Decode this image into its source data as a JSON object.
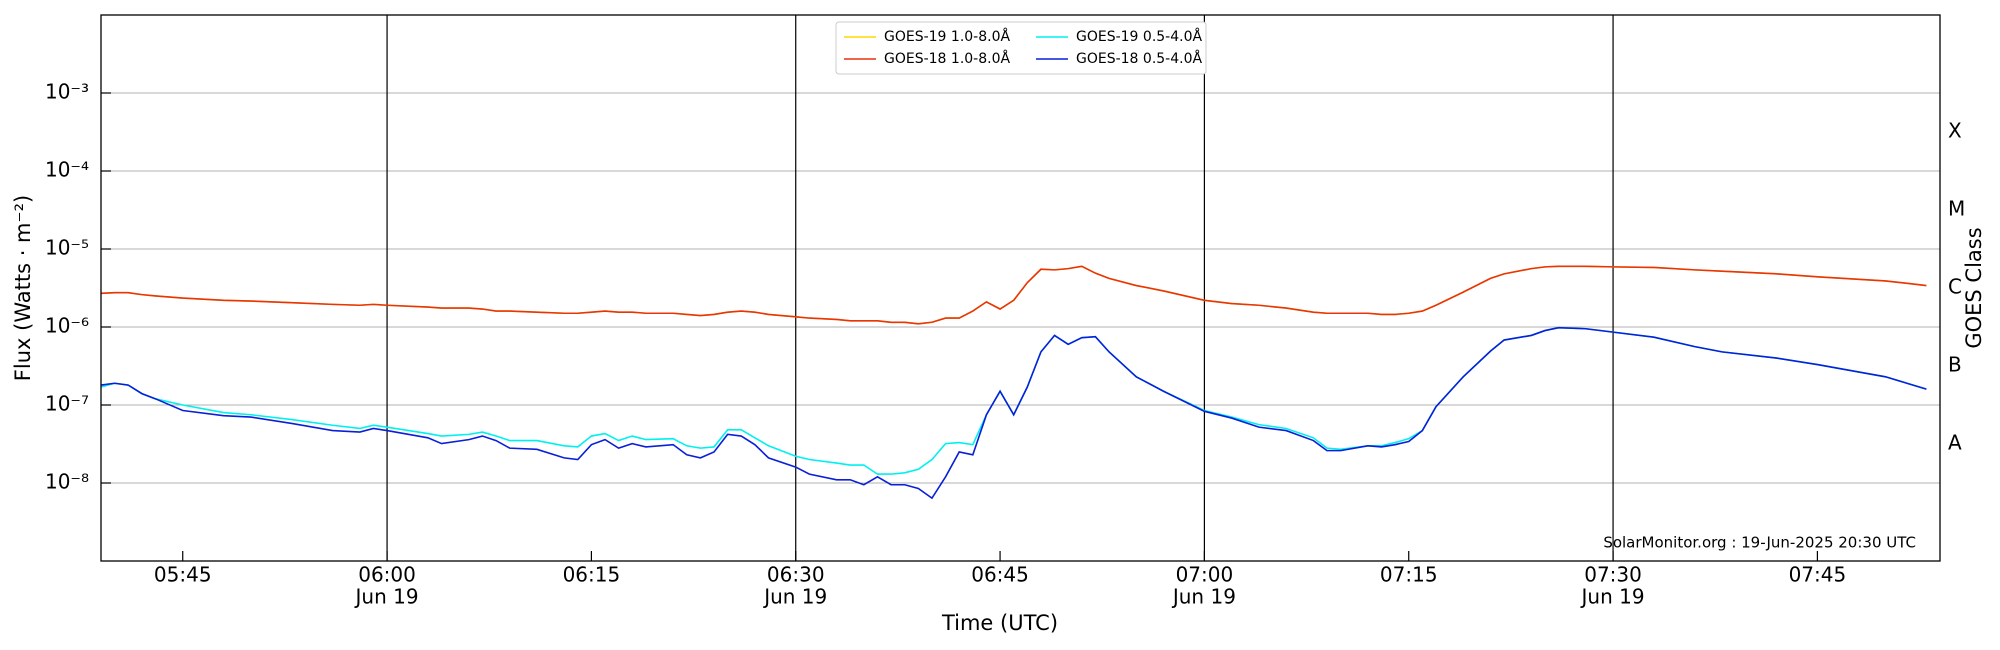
{
  "chart_data": {
    "type": "line",
    "xlabel": "Time (UTC)",
    "ylabel": "Flux (Watts · m⁻²)",
    "y2label": "GOES Class",
    "annotation": "SolarMonitor.org : 19-Jun-2025 20:30 UTC",
    "log_y": true,
    "grid": true,
    "legend": "upper center",
    "xlim": [
      "05:39",
      "07:54"
    ],
    "ylim": [
      1e-09,
      0.01
    ],
    "y2lim": [
      1e-09,
      0.01
    ],
    "xticks": [
      "05:45",
      {
        "value": "06:00",
        "label": [
          "06:00",
          "Jun 19"
        ]
      },
      "06:15",
      {
        "value": "06:30",
        "label": [
          "06:30",
          "Jun 19"
        ]
      },
      "06:45",
      {
        "value": "07:00",
        "label": [
          "07:00",
          "Jun 19"
        ]
      },
      "07:15",
      {
        "value": "07:30",
        "label": [
          "07:30",
          "Jun 19"
        ]
      },
      "07:45"
    ],
    "vlines": [
      "06:00",
      "06:30",
      "07:00",
      "07:30"
    ],
    "yticks": [
      {
        "value": 1e-08,
        "label": "10⁻⁸"
      },
      {
        "value": 1e-07,
        "label": "10⁻⁷"
      },
      {
        "value": 1e-06,
        "label": "10⁻⁶"
      },
      {
        "value": 1e-05,
        "label": "10⁻⁵"
      },
      {
        "value": 0.0001,
        "label": "10⁻⁴"
      },
      {
        "value": 0.001,
        "label": "10⁻³"
      }
    ],
    "y2ticks": [
      {
        "value": 3.162e-08,
        "label": "A"
      },
      {
        "value": 3.162e-07,
        "label": "B"
      },
      {
        "value": 3.162e-06,
        "label": "C"
      },
      {
        "value": 3.162e-05,
        "label": "M"
      },
      {
        "value": 0.0003162,
        "label": "X"
      }
    ],
    "x": [
      "05:39",
      "05:40",
      "05:41",
      "05:42",
      "05:43",
      "05:45",
      "05:48",
      "05:50",
      "05:53",
      "05:56",
      "05:58",
      "05:59",
      "06:00",
      "06:03",
      "06:04",
      "06:06",
      "06:07",
      "06:08",
      "06:09",
      "06:11",
      "06:13",
      "06:14",
      "06:15",
      "06:16",
      "06:17",
      "06:18",
      "06:19",
      "06:21",
      "06:22",
      "06:23",
      "06:24",
      "06:25",
      "06:26",
      "06:27",
      "06:28",
      "06:30",
      "06:31",
      "06:33",
      "06:34",
      "06:35",
      "06:36",
      "06:37",
      "06:38",
      "06:39",
      "06:40",
      "06:41",
      "06:42",
      "06:43",
      "06:44",
      "06:45",
      "06:46",
      "06:47",
      "06:48",
      "06:49",
      "06:50",
      "06:51",
      "06:52",
      "06:53",
      "06:55",
      "06:57",
      "07:00",
      "07:02",
      "07:04",
      "07:06",
      "07:08",
      "07:09",
      "07:10",
      "07:12",
      "07:13",
      "07:14",
      "07:15",
      "07:16",
      "07:17",
      "07:19",
      "07:21",
      "07:22",
      "07:24",
      "07:25",
      "07:26",
      "07:28",
      "07:30",
      "07:33",
      "07:36",
      "07:38",
      "07:42",
      "07:45",
      "07:50",
      "07:53"
    ],
    "series": [
      {
        "name": "GOES-19 1.0-8.0Å",
        "color": "#ffd700",
        "values": [
          2.7e-06,
          2.75e-06,
          2.75e-06,
          2.6e-06,
          2.5e-06,
          2.35e-06,
          2.2e-06,
          2.15e-06,
          2.05e-06,
          1.95e-06,
          1.9e-06,
          1.95e-06,
          1.9e-06,
          1.8e-06,
          1.75e-06,
          1.75e-06,
          1.7e-06,
          1.6e-06,
          1.6e-06,
          1.55e-06,
          1.5e-06,
          1.5e-06,
          1.55e-06,
          1.6e-06,
          1.55e-06,
          1.55e-06,
          1.5e-06,
          1.5e-06,
          1.45e-06,
          1.4e-06,
          1.45e-06,
          1.55e-06,
          1.6e-06,
          1.55e-06,
          1.45e-06,
          1.35e-06,
          1.3e-06,
          1.25e-06,
          1.2e-06,
          1.2e-06,
          1.2e-06,
          1.15e-06,
          1.15e-06,
          1.1e-06,
          1.15e-06,
          1.3e-06,
          1.3e-06,
          1.6e-06,
          2.1e-06,
          1.7e-06,
          2.2e-06,
          3.7e-06,
          5.5e-06,
          5.4e-06,
          5.6e-06,
          6e-06,
          4.9e-06,
          4.2e-06,
          3.4e-06,
          2.9e-06,
          2.2e-06,
          2e-06,
          1.9e-06,
          1.75e-06,
          1.55e-06,
          1.5e-06,
          1.5e-06,
          1.5e-06,
          1.45e-06,
          1.45e-06,
          1.5e-06,
          1.6e-06,
          1.9e-06,
          2.8e-06,
          4.2e-06,
          4.8e-06,
          5.6e-06,
          5.9e-06,
          6e-06,
          6e-06,
          5.9e-06,
          5.8e-06,
          5.4e-06,
          5.2e-06,
          4.8e-06,
          4.4e-06,
          3.9e-06,
          3.4e-06
        ]
      },
      {
        "name": "GOES-18 1.0-8.0Å",
        "color": "#e8340e",
        "values": [
          2.7e-06,
          2.75e-06,
          2.75e-06,
          2.6e-06,
          2.5e-06,
          2.35e-06,
          2.2e-06,
          2.15e-06,
          2.05e-06,
          1.95e-06,
          1.9e-06,
          1.95e-06,
          1.9e-06,
          1.8e-06,
          1.75e-06,
          1.75e-06,
          1.7e-06,
          1.6e-06,
          1.6e-06,
          1.55e-06,
          1.5e-06,
          1.5e-06,
          1.55e-06,
          1.6e-06,
          1.55e-06,
          1.55e-06,
          1.5e-06,
          1.5e-06,
          1.45e-06,
          1.4e-06,
          1.45e-06,
          1.55e-06,
          1.6e-06,
          1.55e-06,
          1.45e-06,
          1.35e-06,
          1.3e-06,
          1.25e-06,
          1.2e-06,
          1.2e-06,
          1.2e-06,
          1.15e-06,
          1.15e-06,
          1.1e-06,
          1.15e-06,
          1.3e-06,
          1.3e-06,
          1.6e-06,
          2.1e-06,
          1.7e-06,
          2.2e-06,
          3.7e-06,
          5.5e-06,
          5.4e-06,
          5.6e-06,
          6e-06,
          4.9e-06,
          4.2e-06,
          3.4e-06,
          2.9e-06,
          2.2e-06,
          2e-06,
          1.9e-06,
          1.75e-06,
          1.55e-06,
          1.5e-06,
          1.5e-06,
          1.5e-06,
          1.45e-06,
          1.45e-06,
          1.5e-06,
          1.6e-06,
          1.9e-06,
          2.8e-06,
          4.2e-06,
          4.8e-06,
          5.6e-06,
          5.9e-06,
          6e-06,
          6e-06,
          5.9e-06,
          5.8e-06,
          5.4e-06,
          5.2e-06,
          4.8e-06,
          4.4e-06,
          3.9e-06,
          3.4e-06
        ]
      },
      {
        "name": "GOES-19 0.5-4.0Å",
        "color": "#00f0f0",
        "values": [
          1.7e-07,
          1.9e-07,
          1.8e-07,
          1.4e-07,
          1.2e-07,
          1e-07,
          8e-08,
          7.5e-08,
          6.5e-08,
          5.5e-08,
          5e-08,
          5.5e-08,
          5.2e-08,
          4.3e-08,
          4e-08,
          4.2e-08,
          4.5e-08,
          4e-08,
          3.5e-08,
          3.5e-08,
          3e-08,
          2.9e-08,
          4e-08,
          4.3e-08,
          3.5e-08,
          4e-08,
          3.6e-08,
          3.7e-08,
          3e-08,
          2.8e-08,
          2.9e-08,
          4.8e-08,
          4.8e-08,
          3.8e-08,
          3e-08,
          2.2e-08,
          2e-08,
          1.8e-08,
          1.7e-08,
          1.7e-08,
          1.3e-08,
          1.3e-08,
          1.35e-08,
          1.5e-08,
          2e-08,
          3.2e-08,
          3.3e-08,
          3.1e-08,
          7.5e-08,
          1.5e-07,
          7.5e-08,
          1.7e-07,
          4.8e-07,
          7.8e-07,
          6e-07,
          7.3e-07,
          7.5e-07,
          4.8e-07,
          2.3e-07,
          1.5e-07,
          8.5e-08,
          7e-08,
          5.6e-08,
          5e-08,
          3.8e-08,
          2.8e-08,
          2.7e-08,
          3e-08,
          3e-08,
          3.3e-08,
          3.7e-08,
          4.7e-08,
          9.5e-08,
          2.3e-07,
          4.9e-07,
          6.8e-07,
          7.8e-07,
          9e-07,
          9.8e-07,
          9.5e-07,
          8.6e-07,
          7.4e-07,
          5.6e-07,
          4.8e-07,
          4e-07,
          3.3e-07,
          2.3e-07,
          1.6e-07
        ]
      },
      {
        "name": "GOES-18 0.5-4.0Å",
        "color": "#0a1fd8",
        "values": [
          1.8e-07,
          1.9e-07,
          1.8e-07,
          1.4e-07,
          1.2e-07,
          8.5e-08,
          7.3e-08,
          7e-08,
          5.8e-08,
          4.7e-08,
          4.5e-08,
          5e-08,
          4.7e-08,
          3.8e-08,
          3.2e-08,
          3.6e-08,
          4e-08,
          3.5e-08,
          2.8e-08,
          2.7e-08,
          2.1e-08,
          2e-08,
          3.1e-08,
          3.6e-08,
          2.8e-08,
          3.2e-08,
          2.9e-08,
          3.1e-08,
          2.3e-08,
          2.1e-08,
          2.5e-08,
          4.2e-08,
          4e-08,
          3.1e-08,
          2.1e-08,
          1.6e-08,
          1.3e-08,
          1.1e-08,
          1.1e-08,
          9.5e-09,
          1.2e-08,
          9.5e-09,
          9.5e-09,
          8.5e-09,
          6.4e-09,
          1.2e-08,
          2.5e-08,
          2.3e-08,
          7.5e-08,
          1.5e-07,
          7.5e-08,
          1.7e-07,
          4.8e-07,
          7.8e-07,
          6e-07,
          7.3e-07,
          7.5e-07,
          4.8e-07,
          2.3e-07,
          1.5e-07,
          8.3e-08,
          6.8e-08,
          5.2e-08,
          4.7e-08,
          3.5e-08,
          2.6e-08,
          2.6e-08,
          3e-08,
          2.9e-08,
          3.1e-08,
          3.4e-08,
          4.7e-08,
          9.5e-08,
          2.3e-07,
          4.9e-07,
          6.8e-07,
          7.8e-07,
          9e-07,
          9.8e-07,
          9.5e-07,
          8.6e-07,
          7.4e-07,
          5.6e-07,
          4.8e-07,
          4e-07,
          3.3e-07,
          2.3e-07,
          1.6e-07
        ]
      }
    ]
  }
}
